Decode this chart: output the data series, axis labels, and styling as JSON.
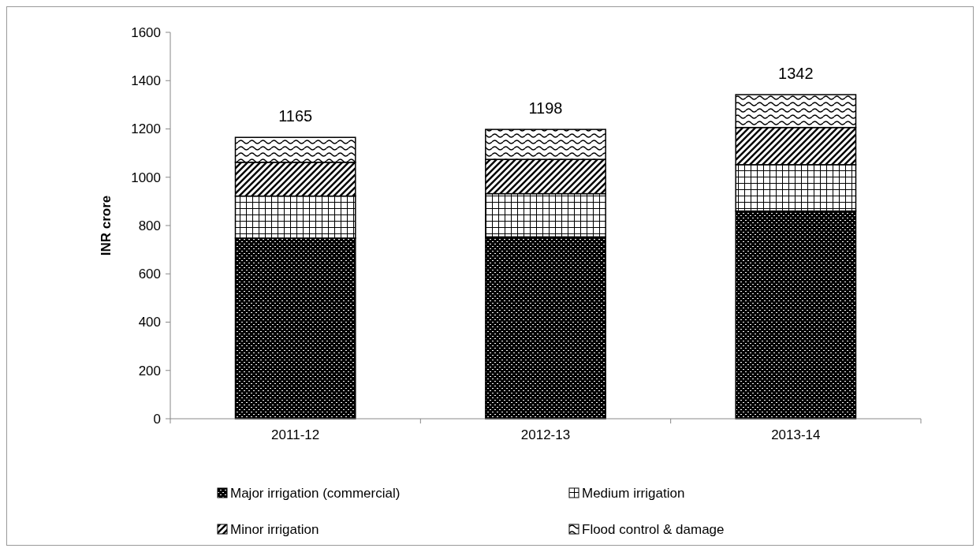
{
  "chart_data": {
    "type": "bar",
    "stacked": true,
    "ylabel": "INR crore",
    "categories": [
      "2011-12",
      "2012-13",
      "2013-14"
    ],
    "series": [
      {
        "name": "Major irrigation (commercial)",
        "color": "#000000",
        "values": [
          748,
          753,
          860
        ]
      },
      {
        "name": "Medium irrigation",
        "color": "#000000",
        "values": [
          174,
          179,
          192
        ]
      },
      {
        "name": "Minor irrigation",
        "color": "#000000",
        "values": [
          140,
          142,
          154
        ]
      },
      {
        "name": "Flood control & damage",
        "color": "#000000",
        "values": [
          103,
          124,
          136
        ]
      }
    ],
    "totals": [
      "1165",
      "1198",
      "1342"
    ],
    "ylim": [
      0,
      1600
    ],
    "yticks": [
      0,
      200,
      400,
      600,
      800,
      1000,
      1200,
      1400,
      1600
    ],
    "grid": false,
    "legend": "bottom"
  }
}
